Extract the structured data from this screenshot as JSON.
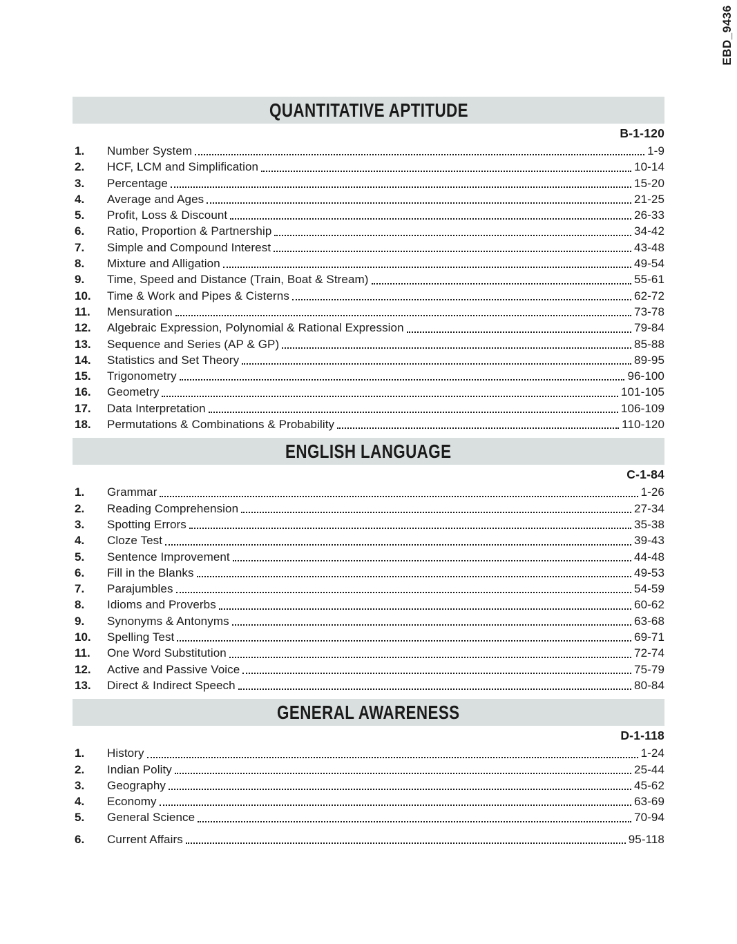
{
  "page": {
    "edge_code": "EBD_9436"
  },
  "colors": {
    "header_bg": "#d9dede",
    "text": "#1a1a1a"
  },
  "sections": [
    {
      "title": "QUANTITATIVE APTITUDE",
      "page_ref": "B-1-120",
      "items": [
        {
          "num": "1.",
          "title": "Number System",
          "pages": "1-9"
        },
        {
          "num": "2.",
          "title": "HCF, LCM and Simplification",
          "pages": "10-14"
        },
        {
          "num": "3.",
          "title": "Percentage",
          "pages": "15-20"
        },
        {
          "num": "4.",
          "title": "Average and Ages",
          "pages": "21-25"
        },
        {
          "num": "5.",
          "title": "Profit, Loss & Discount",
          "pages": "26-33"
        },
        {
          "num": "6.",
          "title": "Ratio, Proportion & Partnership",
          "pages": "34-42"
        },
        {
          "num": "7.",
          "title": "Simple and Compound Interest",
          "pages": "43-48"
        },
        {
          "num": "8.",
          "title": "Mixture and Alligation",
          "pages": "49-54"
        },
        {
          "num": "9.",
          "title": "Time, Speed and Distance (Train, Boat & Stream)",
          "pages": "55-61"
        },
        {
          "num": "10.",
          "title": "Time & Work and Pipes & Cisterns",
          "pages": "62-72"
        },
        {
          "num": "11.",
          "title": "Mensuration",
          "pages": "73-78"
        },
        {
          "num": "12.",
          "title": "Algebraic Expression, Polynomial & Rational Expression",
          "pages": "79-84"
        },
        {
          "num": "13.",
          "title": "Sequence and Series (AP & GP)",
          "pages": "85-88"
        },
        {
          "num": "14.",
          "title": "Statistics and Set Theory",
          "pages": "89-95"
        },
        {
          "num": "15.",
          "title": "Trigonometry",
          "pages": "96-100"
        },
        {
          "num": "16.",
          "title": "Geometry",
          "pages": "101-105"
        },
        {
          "num": "17.",
          "title": "Data Interpretation",
          "pages": "106-109"
        },
        {
          "num": "18.",
          "title": "Permutations & Combinations & Probability",
          "pages": "110-120"
        }
      ]
    },
    {
      "title": "ENGLISH LANGUAGE",
      "page_ref": "C-1-84",
      "items": [
        {
          "num": "1.",
          "title": "Grammar",
          "pages": "1-26"
        },
        {
          "num": "2.",
          "title": "Reading Comprehension",
          "pages": "27-34"
        },
        {
          "num": "3.",
          "title": "Spotting Errors",
          "pages": "35-38"
        },
        {
          "num": "4.",
          "title": "Cloze Test",
          "pages": "39-43"
        },
        {
          "num": "5.",
          "title": "Sentence Improvement",
          "pages": "44-48"
        },
        {
          "num": "6.",
          "title": "Fill in the Blanks",
          "pages": "49-53"
        },
        {
          "num": "7.",
          "title": "Parajumbles",
          "pages": "54-59"
        },
        {
          "num": "8.",
          "title": "Idioms and Proverbs",
          "pages": "60-62"
        },
        {
          "num": "9.",
          "title": "Synonyms & Antonyms",
          "pages": "63-68"
        },
        {
          "num": "10.",
          "title": "Spelling Test",
          "pages": "69-71"
        },
        {
          "num": "11.",
          "title": "One Word Substitution",
          "pages": "72-74"
        },
        {
          "num": "12.",
          "title": "Active and Passive Voice",
          "pages": "75-79"
        },
        {
          "num": "13.",
          "title": "Direct & Indirect Speech",
          "pages": "80-84"
        }
      ]
    },
    {
      "title": "GENERAL AWARENESS",
      "page_ref": "D-1-118",
      "items": [
        {
          "num": "1.",
          "title": "History",
          "pages": "1-24"
        },
        {
          "num": "2.",
          "title": "Indian Polity",
          "pages": "25-44"
        },
        {
          "num": "3.",
          "title": "Geography",
          "pages": "45-62"
        },
        {
          "num": "4.",
          "title": "Economy",
          "pages": "63-69"
        },
        {
          "num": "5.",
          "title": "General Science",
          "pages": "70-94"
        },
        {
          "num": "6.",
          "title": "Current Affairs",
          "pages": "95-118",
          "gap_before": true
        }
      ]
    }
  ]
}
